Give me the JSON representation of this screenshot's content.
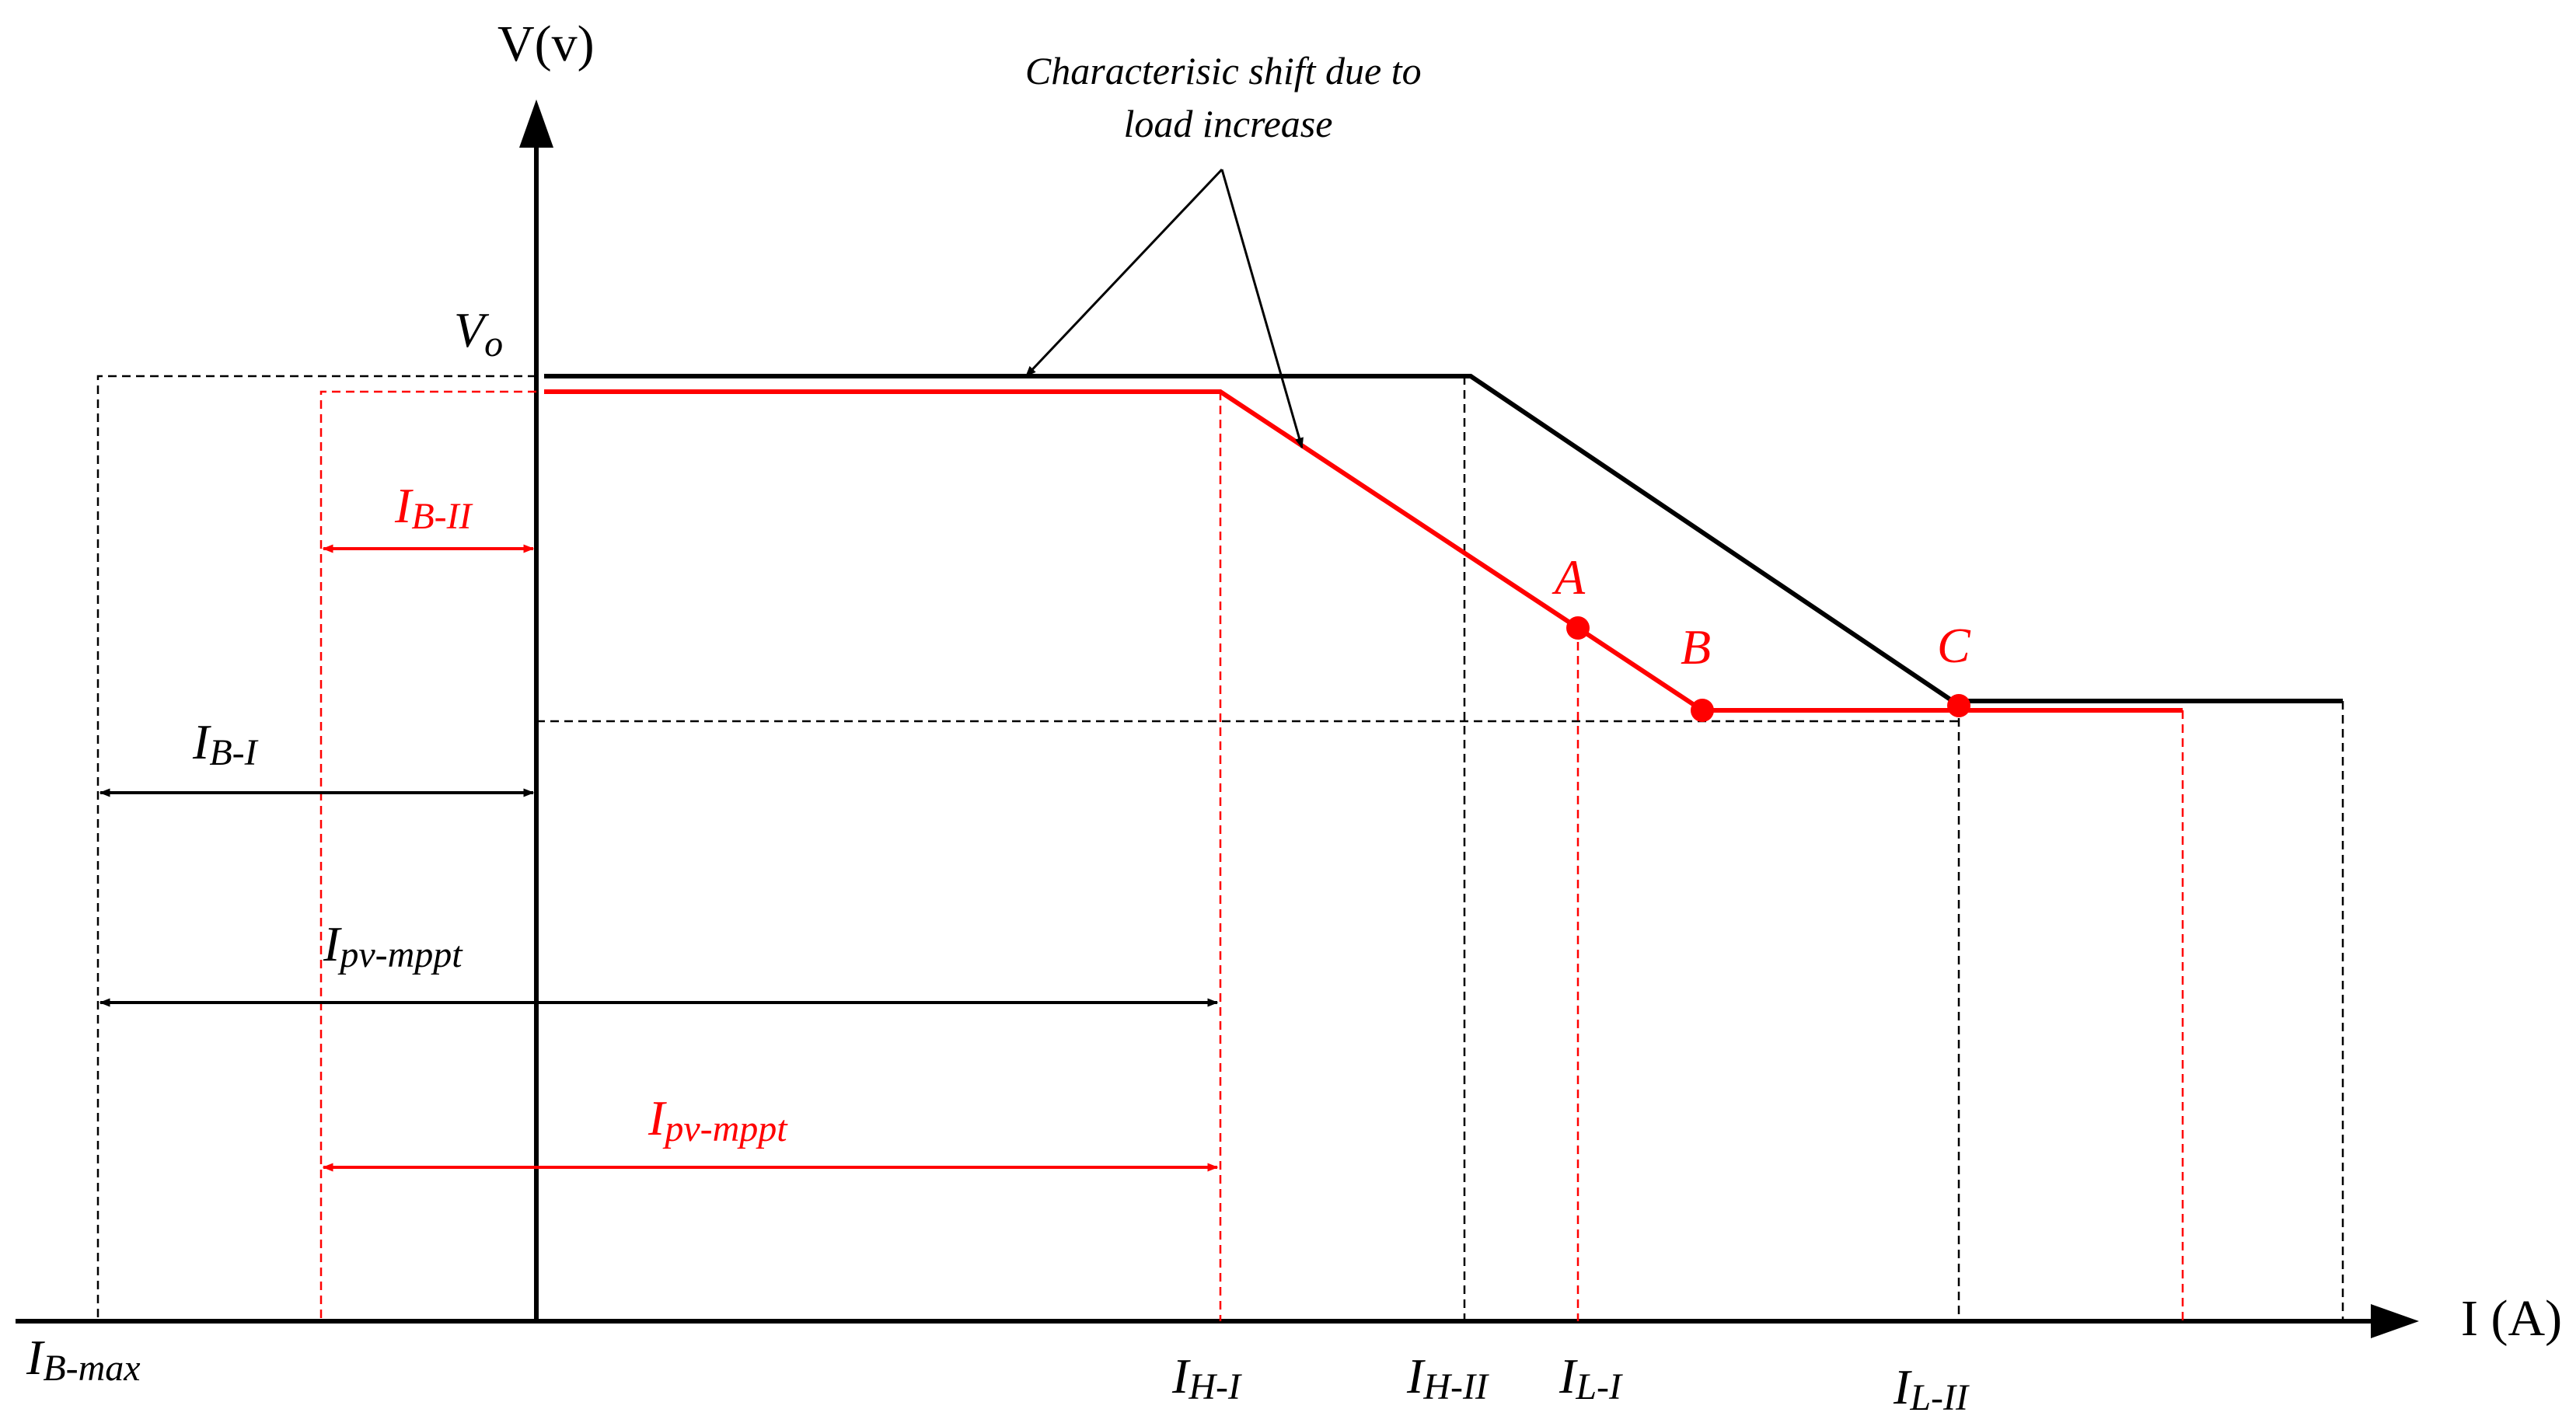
{
  "axes": {
    "y_label": "V(v)",
    "x_label": "I (A)"
  },
  "annotation": {
    "line1": "Characterisic shift due to",
    "line2": "load increase"
  },
  "labels": {
    "vo": {
      "main": "V",
      "sub": "o"
    },
    "ib_ii": {
      "main": "I",
      "sub": "B-II"
    },
    "ib_i": {
      "main": "I",
      "sub": "B-I"
    },
    "ipv_black": {
      "main": "I",
      "sub": "pv-mppt"
    },
    "ipv_red": {
      "main": "I",
      "sub": "pv-mppt"
    },
    "ib_max": {
      "main": "I",
      "sub": "B-max"
    },
    "ih_i": {
      "main": "I",
      "sub": "H-I"
    },
    "ih_ii": {
      "main": "I",
      "sub": "H-II"
    },
    "il_i": {
      "main": "I",
      "sub": "L-I"
    },
    "il_ii": {
      "main": "I",
      "sub": "L-II"
    }
  },
  "points": {
    "a": "A",
    "b": "B",
    "c": "C"
  },
  "colors": {
    "original": "#000000",
    "shifted": "#ff0000"
  }
}
